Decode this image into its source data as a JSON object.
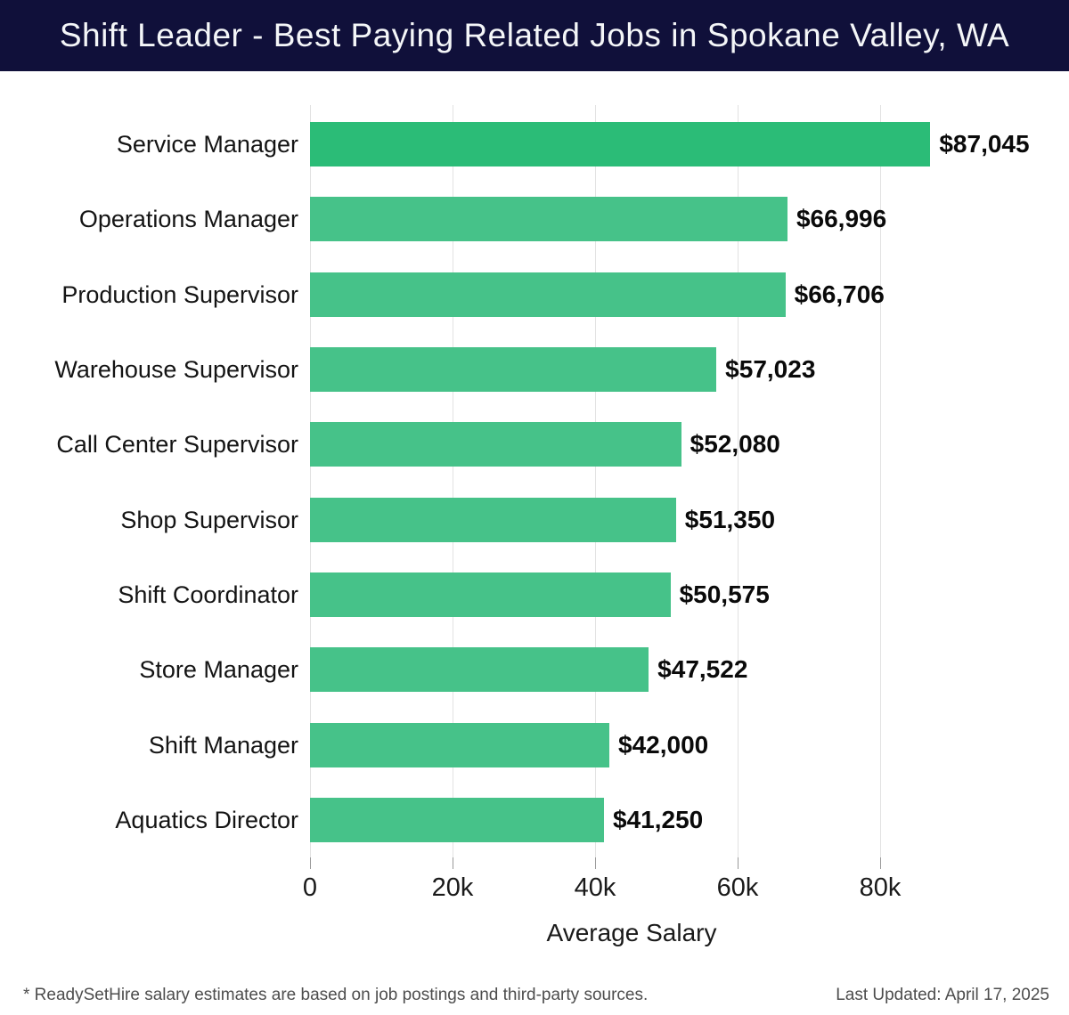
{
  "header": {
    "title": "Shift Leader - Best Paying Related Jobs in Spokane Valley, WA",
    "bg_color": "#10103a"
  },
  "chart_data": {
    "type": "bar",
    "orientation": "horizontal",
    "title": "Shift Leader - Best Paying Related Jobs in Spokane Valley, WA",
    "categories": [
      "Service Manager",
      "Operations Manager",
      "Production Supervisor",
      "Warehouse Supervisor",
      "Call Center Supervisor",
      "Shop Supervisor",
      "Shift Coordinator",
      "Store Manager",
      "Shift Manager",
      "Aquatics Director"
    ],
    "values": [
      87045,
      66996,
      66706,
      57023,
      52080,
      51350,
      50575,
      47522,
      42000,
      41250
    ],
    "value_labels": [
      "$87,045",
      "$66,996",
      "$66,706",
      "$57,023",
      "$52,080",
      "$51,350",
      "$50,575",
      "$47,522",
      "$42,000",
      "$41,250"
    ],
    "xlabel": "Average Salary",
    "ylabel": "",
    "xlim": [
      0,
      90000
    ],
    "tick_values": [
      0,
      20000,
      40000,
      60000,
      80000
    ],
    "tick_labels": [
      "0",
      "20k",
      "40k",
      "60k",
      "80k"
    ],
    "grid": "vertical",
    "legend": "none",
    "highlight_index": 0,
    "highlight_color": "#2bbc77",
    "bar_color": "#46c289"
  },
  "footer": {
    "note": "* ReadySetHire salary estimates are based on job postings and third-party sources.",
    "last_updated": "Last Updated: April 17, 2025"
  }
}
